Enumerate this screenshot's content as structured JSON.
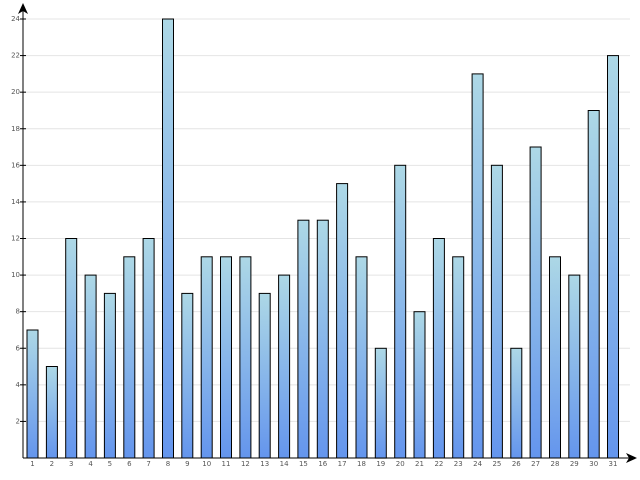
{
  "chart_data": {
    "type": "bar",
    "categories": [
      "1",
      "2",
      "3",
      "4",
      "5",
      "6",
      "7",
      "8",
      "9",
      "10",
      "11",
      "12",
      "13",
      "14",
      "15",
      "16",
      "17",
      "18",
      "19",
      "20",
      "21",
      "22",
      "23",
      "24",
      "25",
      "26",
      "27",
      "28",
      "29",
      "30",
      "31"
    ],
    "values": [
      7,
      5,
      12,
      10,
      9,
      11,
      12,
      24,
      9,
      11,
      11,
      11,
      9,
      10,
      13,
      13,
      15,
      11,
      6,
      16,
      8,
      12,
      11,
      21,
      16,
      6,
      17,
      11,
      10,
      19,
      22
    ],
    "y_tick_labels": [
      "2",
      "4",
      "6",
      "8",
      "10",
      "12",
      "14",
      "16",
      "18",
      "20",
      "22",
      "24"
    ],
    "ylim": [
      0,
      24
    ],
    "grid": true,
    "colors": {
      "bar_top": "#add8e6",
      "bar_bottom": "#6495ed",
      "grid": "#e4e4e4",
      "axis": "#000000"
    }
  }
}
